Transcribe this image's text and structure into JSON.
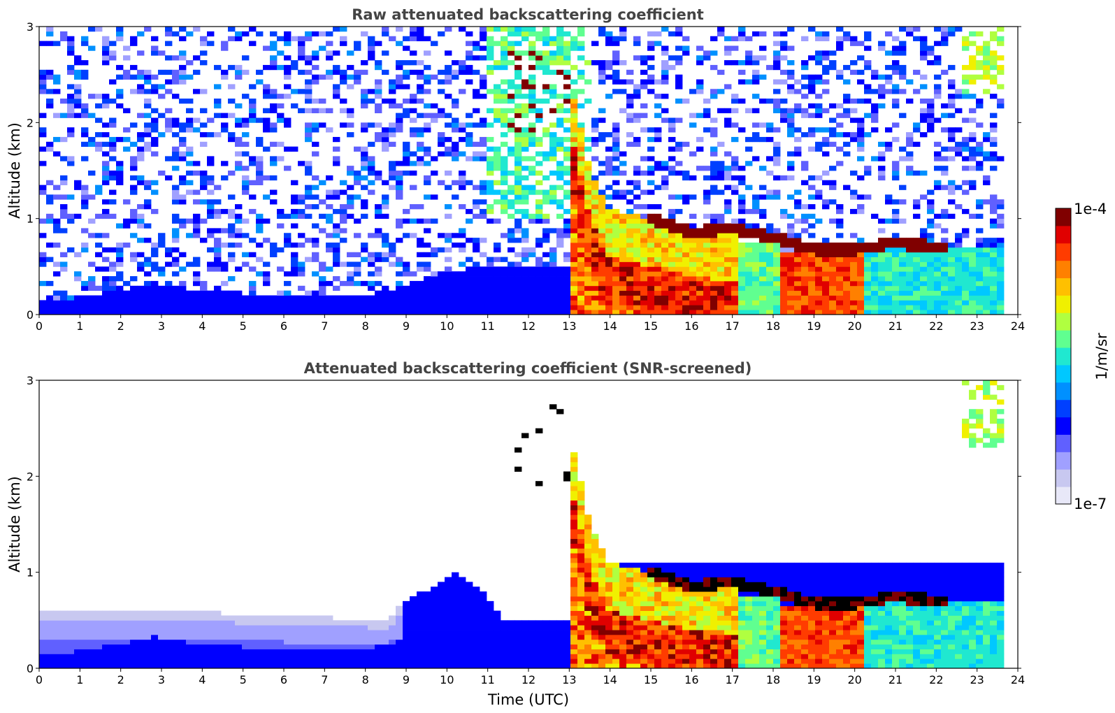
{
  "chart_data": [
    {
      "type": "heatmap",
      "title": "Raw attenuated backscattering coefficient",
      "xlabel": "",
      "ylabel": "Altitude (km)",
      "xlim": [
        0,
        24
      ],
      "ylim": [
        0,
        3
      ],
      "xticks": [
        "0",
        "1",
        "2",
        "3",
        "4",
        "5",
        "6",
        "7",
        "8",
        "9",
        "10",
        "11",
        "12",
        "13",
        "14",
        "15",
        "16",
        "17",
        "18",
        "19",
        "20",
        "21",
        "22",
        "23",
        "24"
      ],
      "yticks": [
        "0",
        "1",
        "2",
        "3"
      ],
      "data_end_hour": 23.6,
      "features": {
        "boundary_layer_km": [
          [
            0,
            0.12
          ],
          [
            2,
            0.25
          ],
          [
            2.8,
            0.33
          ],
          [
            4,
            0.25
          ],
          [
            6,
            0.2
          ],
          [
            8,
            0.2
          ],
          [
            9,
            0.3
          ],
          [
            10,
            0.45
          ],
          [
            11,
            0.5
          ],
          [
            13,
            0.5
          ]
        ],
        "descending_plume_km": [
          [
            11.5,
            2.3
          ],
          [
            12.5,
            2.6
          ],
          [
            13,
            2.0
          ],
          [
            13.5,
            1.0
          ],
          [
            14,
            0.6
          ],
          [
            15,
            0.5
          ],
          [
            16,
            0.4
          ],
          [
            17,
            0.35
          ]
        ],
        "cloud_layer_km": [
          [
            15,
            1.0
          ],
          [
            16,
            0.85
          ],
          [
            17,
            0.9
          ],
          [
            18,
            0.8
          ],
          [
            19,
            0.68
          ],
          [
            20,
            0.68
          ],
          [
            21,
            0.75
          ],
          [
            22,
            0.7
          ]
        ],
        "aerosol_blocks": [
          {
            "start": 18.2,
            "end": 20.2,
            "top_km": 0.65,
            "level": "high"
          },
          {
            "start": 17.1,
            "end": 18.2,
            "top_km": 0.75,
            "level": "mid"
          }
        ]
      }
    },
    {
      "type": "heatmap",
      "title": "Attenuated backscattering coefficient (SNR-screened)",
      "xlabel": "Time (UTC)",
      "ylabel": "Altitude (km)",
      "xlim": [
        0,
        24
      ],
      "ylim": [
        0,
        3
      ],
      "xticks": [
        "0",
        "1",
        "2",
        "3",
        "4",
        "5",
        "6",
        "7",
        "8",
        "9",
        "10",
        "11",
        "12",
        "13",
        "14",
        "15",
        "16",
        "17",
        "18",
        "19",
        "20",
        "21",
        "22",
        "23",
        "24"
      ],
      "yticks": [
        "0",
        "1",
        "2",
        "3"
      ],
      "data_end_hour": 23.6,
      "features": {
        "screened_haze_top_km": [
          [
            0,
            0.58
          ],
          [
            3,
            0.6
          ],
          [
            6,
            0.55
          ],
          [
            8.5,
            0.5
          ],
          [
            9,
            0.7
          ],
          [
            10.3,
            1.0
          ],
          [
            11,
            0.75
          ],
          [
            11.5,
            0.45
          ],
          [
            13,
            0.5
          ]
        ],
        "clipped_values_color": "#000000"
      }
    }
  ],
  "colorbar": {
    "label": "1/m/sr",
    "max_label": "1e-4",
    "min_label": "1e-7",
    "colors": [
      "#e8e8f8",
      "#c8c8f0",
      "#a0a0ff",
      "#6060ff",
      "#0000ff",
      "#0040ff",
      "#0090ff",
      "#00c8ff",
      "#20e8d0",
      "#60ff90",
      "#b0ff40",
      "#f0f000",
      "#ffc000",
      "#ff8000",
      "#ff3c00",
      "#e00000",
      "#800000"
    ]
  }
}
